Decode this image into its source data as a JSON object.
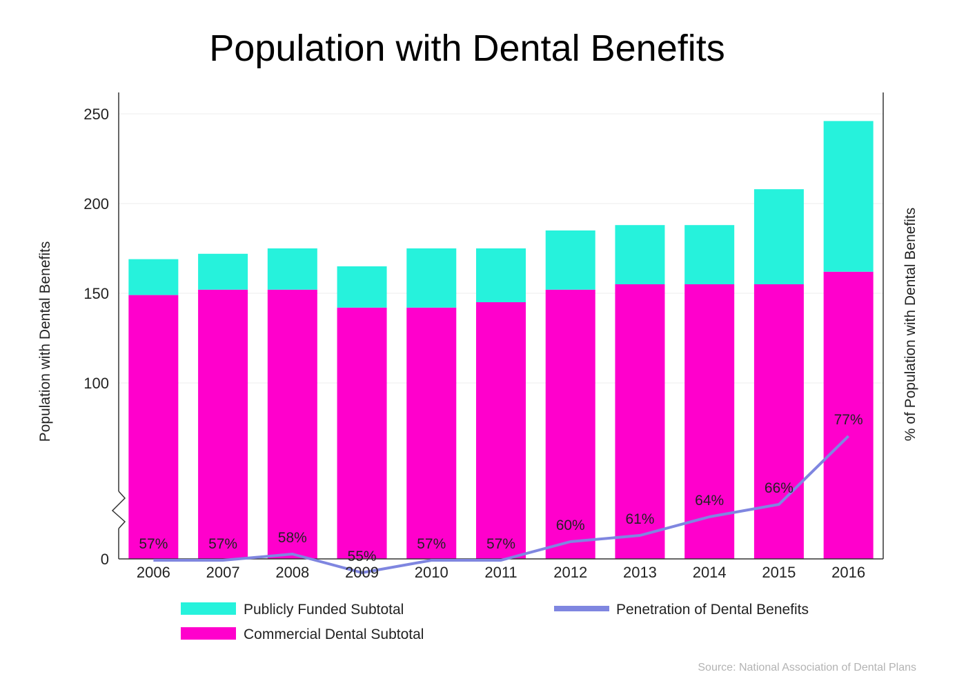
{
  "chart_data": {
    "type": "bar",
    "stacked": true,
    "title": "Population with Dental Benefits",
    "categories": [
      "2006",
      "2007",
      "2008",
      "2009",
      "2010",
      "2011",
      "2012",
      "2013",
      "2014",
      "2015",
      "2016"
    ],
    "series": [
      {
        "name": "Commercial Dental Subtotal",
        "color": "#ff00cc",
        "values": [
          149,
          152,
          152,
          142,
          142,
          145,
          152,
          155,
          155,
          155,
          162
        ]
      },
      {
        "name": "Publicly Funded Subtotal",
        "color": "#26f2dc",
        "values": [
          20,
          20,
          23,
          23,
          33,
          30,
          33,
          33,
          33,
          53,
          84
        ]
      }
    ],
    "line_series": {
      "name": "Penetration of Dental Benefits",
      "color": "#7f86e0",
      "values": [
        57,
        57,
        58,
        55,
        57,
        57,
        60,
        61,
        64,
        66,
        77
      ],
      "labels": [
        "57%",
        "57%",
        "58%",
        "55%",
        "57%",
        "57%",
        "60%",
        "61%",
        "64%",
        "66%",
        "77%"
      ]
    },
    "ylabel": "Population with Dental Benefits",
    "ylabel_right": "% of Population with Dental Benefits",
    "y_ticks": [
      "250",
      "200",
      "150",
      "100",
      "0"
    ],
    "y_axis_break": true,
    "ylim": [
      0,
      250
    ],
    "grid": true,
    "legend": [
      {
        "label": "Publicly Funded Subtotal",
        "kind": "bar",
        "color": "#26f2dc"
      },
      {
        "label": "Commercial Dental Subtotal",
        "kind": "bar",
        "color": "#ff00cc"
      },
      {
        "label": "Penetration of Dental Benefits",
        "kind": "line",
        "color": "#7f86e0"
      }
    ],
    "legend_position": "bottom",
    "source": "Source: National Association of Dental Plans"
  }
}
